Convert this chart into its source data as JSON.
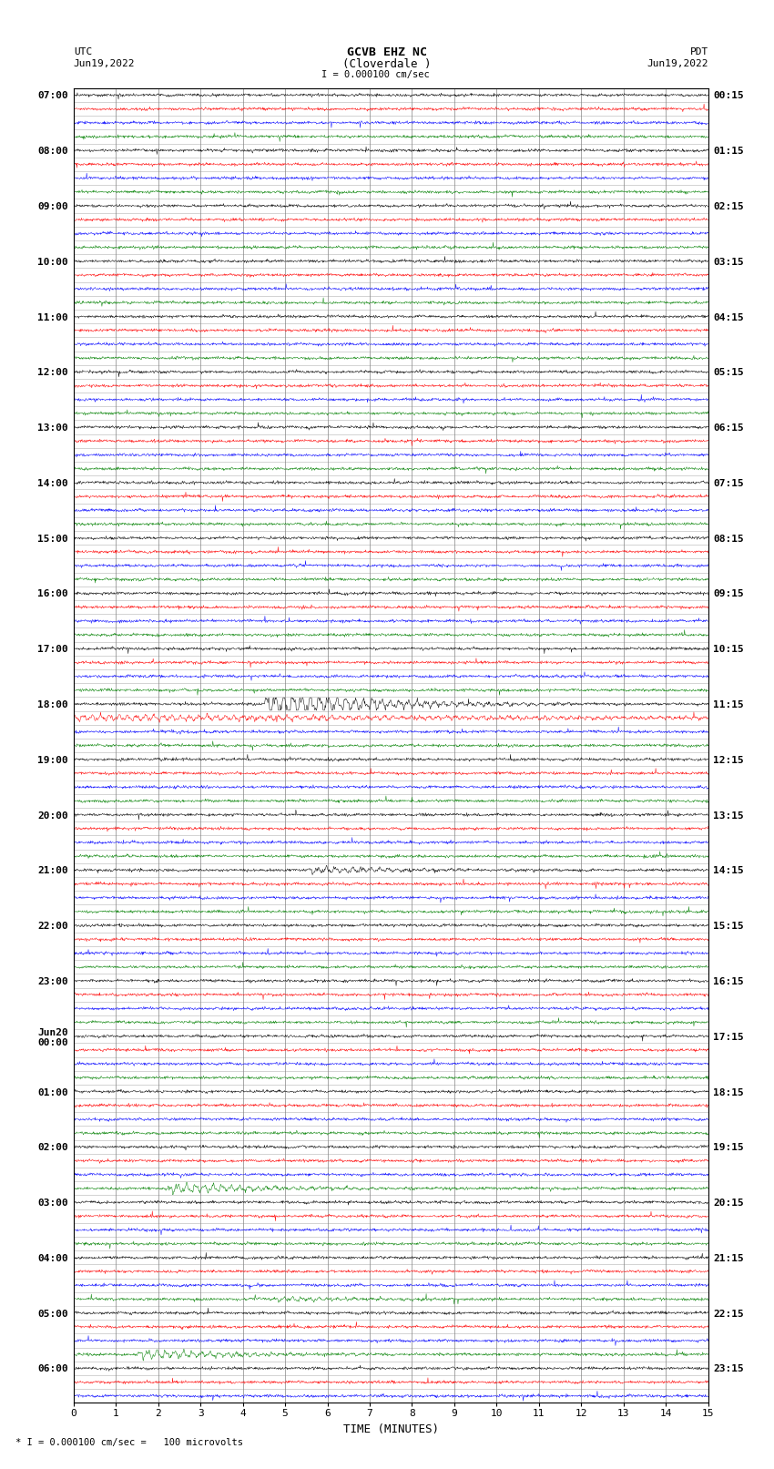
{
  "title_line1": "GCVB EHZ NC",
  "title_line2": "(Cloverdale )",
  "scale_label": "I = 0.000100 cm/sec",
  "left_label_top": "UTC",
  "left_label_date": "Jun19,2022",
  "right_label_top": "PDT",
  "right_label_date": "Jun19,2022",
  "xlabel": "TIME (MINUTES)",
  "footer": "* I = 0.000100 cm/sec =   100 microvolts",
  "utc_times": [
    "07:00",
    "",
    "",
    "",
    "08:00",
    "",
    "",
    "",
    "09:00",
    "",
    "",
    "",
    "10:00",
    "",
    "",
    "",
    "11:00",
    "",
    "",
    "",
    "12:00",
    "",
    "",
    "",
    "13:00",
    "",
    "",
    "",
    "14:00",
    "",
    "",
    "",
    "15:00",
    "",
    "",
    "",
    "16:00",
    "",
    "",
    "",
    "17:00",
    "",
    "",
    "",
    "18:00",
    "",
    "",
    "",
    "19:00",
    "",
    "",
    "",
    "20:00",
    "",
    "",
    "",
    "21:00",
    "",
    "",
    "",
    "22:00",
    "",
    "",
    "",
    "23:00",
    "",
    "",
    "",
    "Jun20\n00:00",
    "",
    "",
    "",
    "01:00",
    "",
    "",
    "",
    "02:00",
    "",
    "",
    "",
    "03:00",
    "",
    "",
    "",
    "04:00",
    "",
    "",
    "",
    "05:00",
    "",
    "",
    "",
    "06:00",
    "",
    ""
  ],
  "pdt_times": [
    "00:15",
    "",
    "",
    "",
    "01:15",
    "",
    "",
    "",
    "02:15",
    "",
    "",
    "",
    "03:15",
    "",
    "",
    "",
    "04:15",
    "",
    "",
    "",
    "05:15",
    "",
    "",
    "",
    "06:15",
    "",
    "",
    "",
    "07:15",
    "",
    "",
    "",
    "08:15",
    "",
    "",
    "",
    "09:15",
    "",
    "",
    "",
    "10:15",
    "",
    "",
    "",
    "11:15",
    "",
    "",
    "",
    "12:15",
    "",
    "",
    "",
    "13:15",
    "",
    "",
    "",
    "14:15",
    "",
    "",
    "",
    "15:15",
    "",
    "",
    "",
    "16:15",
    "",
    "",
    "",
    "17:15",
    "",
    "",
    "",
    "18:15",
    "",
    "",
    "",
    "19:15",
    "",
    "",
    "",
    "20:15",
    "",
    "",
    "",
    "21:15",
    "",
    "",
    "",
    "22:15",
    "",
    "",
    "",
    "23:15",
    "",
    ""
  ],
  "num_rows": 95,
  "minutes_per_row": 15,
  "x_ticks": [
    0,
    1,
    2,
    3,
    4,
    5,
    6,
    7,
    8,
    9,
    10,
    11,
    12,
    13,
    14,
    15
  ],
  "colors_cycle": [
    "black",
    "red",
    "blue",
    "green"
  ],
  "background_color": "white",
  "grid_color": "#808080",
  "noise_amplitude": 0.12,
  "event1_row": 44,
  "event1_minute": 4.5,
  "event1_color": "blue",
  "event1_amplitude": 0.85,
  "event1_duration_rows": 5,
  "event2_row": 56,
  "event2_minute": 5.5,
  "event2_color": "black",
  "event2_amplitude": 0.18,
  "event3_row": 79,
  "event3_minute": 2.2,
  "event3_color": "black",
  "event3_amplitude": 0.28,
  "event4_row": 87,
  "event4_minute": 4.7,
  "event4_color": "black",
  "event4_amplitude": 0.12,
  "event5_row": 91,
  "event5_minute": 1.5,
  "event5_color": "red",
  "event5_amplitude": 0.25
}
